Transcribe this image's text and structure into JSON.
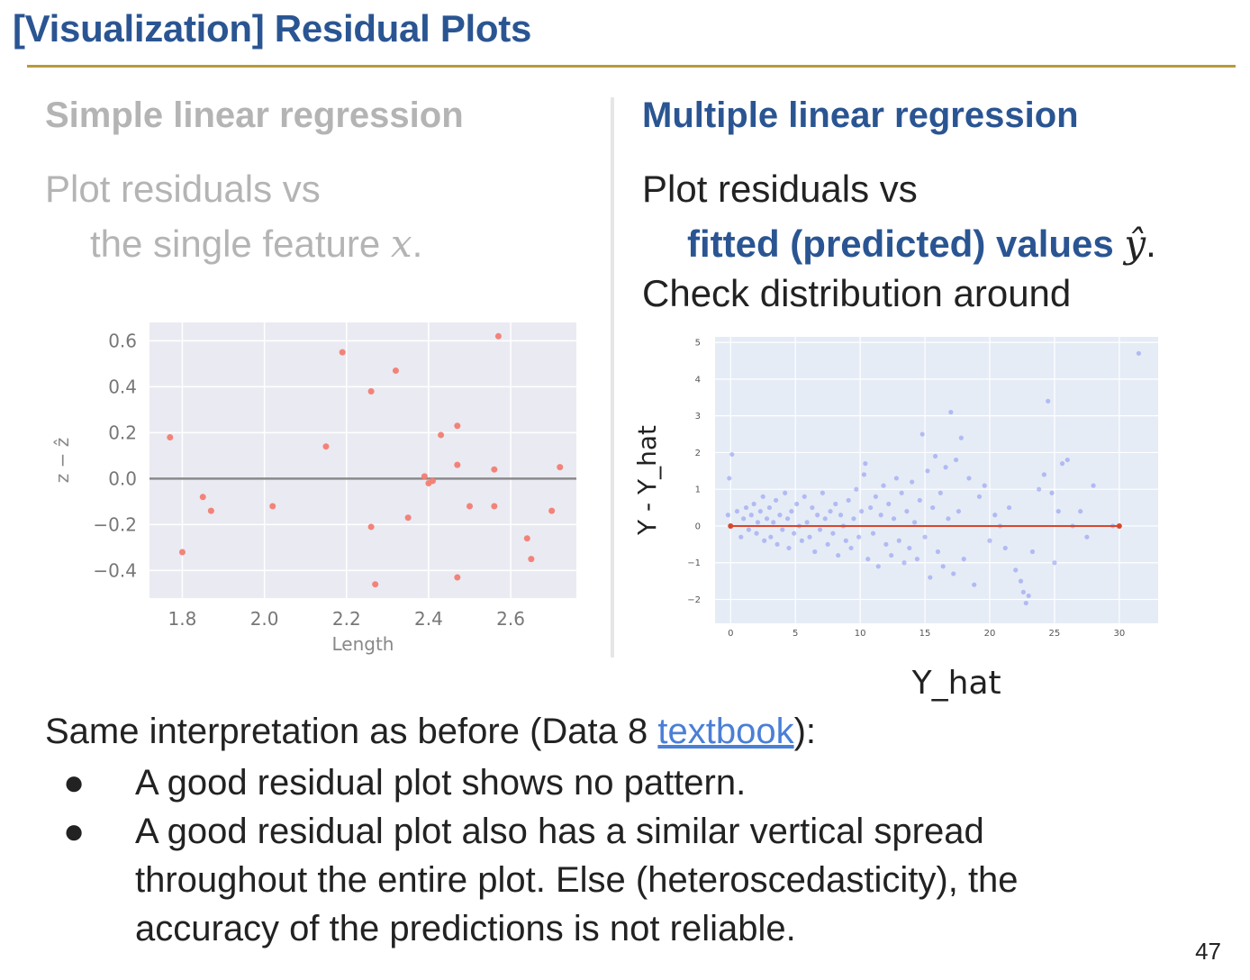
{
  "slide": {
    "title": "[Visualization] Residual Plots",
    "page_number": "47"
  },
  "left": {
    "heading": "Simple linear regression",
    "line1": "Plot residuals vs",
    "line2": "the single feature ",
    "line2_math": "x",
    "line2_end": "."
  },
  "right": {
    "heading": "Multiple linear regression",
    "line1": "Plot residuals vs",
    "line2": "fitted (predicted) values ",
    "line2_math": "ŷ",
    "line2_end": ".",
    "line3": "Check distribution around"
  },
  "bottom": {
    "intro_pre": "Same interpretation as before  (Data 8 ",
    "intro_link": "textbook",
    "intro_post": "):",
    "bullets": [
      "A good residual plot shows no pattern.",
      "A good residual plot also has a similar vertical spread throughout the entire plot. Else (heteroscedasticity), the accuracy of the predictions is not reliable."
    ],
    "bullet_glyph": "●"
  },
  "chart_data": [
    {
      "type": "scatter",
      "title": "",
      "xlabel": "Length",
      "ylabel": "z − ẑ",
      "xlim": [
        1.72,
        2.76
      ],
      "ylim": [
        -0.52,
        0.68
      ],
      "xticks": [
        "1.8",
        "2.0",
        "2.2",
        "2.4",
        "2.6"
      ],
      "xtick_values": [
        1.8,
        2.0,
        2.2,
        2.4,
        2.6
      ],
      "yticks": [
        "0.6",
        "0.4",
        "0.2",
        "0.0",
        "−0.2",
        "−0.4"
      ],
      "ytick_values": [
        0.6,
        0.4,
        0.2,
        0.0,
        -0.2,
        -0.4
      ],
      "hline": 0.0,
      "grid": true,
      "point_color": "#f27d72",
      "points": [
        [
          1.77,
          0.18
        ],
        [
          1.8,
          -0.32
        ],
        [
          1.85,
          -0.08
        ],
        [
          1.87,
          -0.14
        ],
        [
          2.02,
          -0.12
        ],
        [
          2.15,
          0.14
        ],
        [
          2.19,
          0.55
        ],
        [
          2.26,
          0.38
        ],
        [
          2.26,
          -0.21
        ],
        [
          2.27,
          -0.46
        ],
        [
          2.32,
          0.47
        ],
        [
          2.35,
          -0.17
        ],
        [
          2.39,
          0.01
        ],
        [
          2.4,
          -0.02
        ],
        [
          2.41,
          -0.01
        ],
        [
          2.43,
          0.19
        ],
        [
          2.47,
          0.23
        ],
        [
          2.47,
          0.06
        ],
        [
          2.47,
          -0.43
        ],
        [
          2.5,
          -0.12
        ],
        [
          2.56,
          0.04
        ],
        [
          2.56,
          -0.12
        ],
        [
          2.57,
          0.62
        ],
        [
          2.64,
          -0.26
        ],
        [
          2.65,
          -0.35
        ],
        [
          2.7,
          -0.14
        ],
        [
          2.72,
          0.05
        ]
      ]
    },
    {
      "type": "scatter",
      "title": "",
      "xlabel": "Y_hat",
      "ylabel": "Y - Y_hat",
      "xlim": [
        -1.2,
        33.0
      ],
      "ylim": [
        -2.65,
        5.15
      ],
      "xticks": [
        "0",
        "5",
        "10",
        "15",
        "20",
        "25",
        "30"
      ],
      "xtick_values": [
        0,
        5,
        10,
        15,
        20,
        25,
        30
      ],
      "yticks": [
        "5",
        "4",
        "3",
        "2",
        "1",
        "0",
        "−1",
        "−2"
      ],
      "ytick_values": [
        5,
        4,
        3,
        2,
        1,
        0,
        -1,
        -2
      ],
      "grid": true,
      "point_color": "#6470f0",
      "line": {
        "color": "#d9472b",
        "x": [
          0,
          30
        ],
        "y": [
          0,
          0
        ]
      },
      "points_summary": "dense cloud of several hundred points, most between Y_hat 0-15 with residuals mostly within ±1; sparser points spread up to Y_hat ≈ 31.5",
      "points": [
        [
          -0.2,
          0.3
        ],
        [
          -0.1,
          1.3
        ],
        [
          0.1,
          1.95
        ],
        [
          0.5,
          0.4
        ],
        [
          0.8,
          -0.3
        ],
        [
          1.0,
          0.2
        ],
        [
          1.2,
          0.5
        ],
        [
          1.4,
          -0.1
        ],
        [
          1.6,
          0.3
        ],
        [
          1.8,
          0.6
        ],
        [
          2.0,
          -0.2
        ],
        [
          2.1,
          0.1
        ],
        [
          2.3,
          0.4
        ],
        [
          2.5,
          0.8
        ],
        [
          2.6,
          -0.4
        ],
        [
          2.8,
          0.2
        ],
        [
          3.0,
          0.5
        ],
        [
          3.1,
          -0.3
        ],
        [
          3.3,
          0.1
        ],
        [
          3.5,
          0.7
        ],
        [
          3.6,
          -0.5
        ],
        [
          3.8,
          0.3
        ],
        [
          4.0,
          -0.1
        ],
        [
          4.2,
          0.9
        ],
        [
          4.4,
          0.2
        ],
        [
          4.5,
          -0.6
        ],
        [
          4.7,
          0.4
        ],
        [
          4.9,
          -0.2
        ],
        [
          5.1,
          0.6
        ],
        [
          5.3,
          0.0
        ],
        [
          5.5,
          -0.4
        ],
        [
          5.7,
          0.8
        ],
        [
          5.9,
          0.1
        ],
        [
          6.1,
          -0.3
        ],
        [
          6.3,
          0.5
        ],
        [
          6.5,
          -0.7
        ],
        [
          6.7,
          0.3
        ],
        [
          6.9,
          -0.1
        ],
        [
          7.1,
          0.9
        ],
        [
          7.3,
          0.2
        ],
        [
          7.5,
          -0.5
        ],
        [
          7.7,
          0.4
        ],
        [
          7.9,
          -0.2
        ],
        [
          8.1,
          0.6
        ],
        [
          8.3,
          -0.8
        ],
        [
          8.5,
          0.3
        ],
        [
          8.7,
          0.0
        ],
        [
          8.9,
          -0.4
        ],
        [
          9.1,
          0.7
        ],
        [
          9.3,
          -0.6
        ],
        [
          9.5,
          0.2
        ],
        [
          9.7,
          1.0
        ],
        [
          9.9,
          -0.3
        ],
        [
          10.1,
          0.4
        ],
        [
          10.3,
          1.4
        ],
        [
          10.4,
          1.7
        ],
        [
          10.6,
          -0.9
        ],
        [
          10.8,
          0.5
        ],
        [
          11.0,
          -0.2
        ],
        [
          11.2,
          0.8
        ],
        [
          11.4,
          -1.1
        ],
        [
          11.6,
          0.3
        ],
        [
          11.8,
          1.1
        ],
        [
          12.0,
          -0.5
        ],
        [
          12.2,
          0.6
        ],
        [
          12.4,
          -0.8
        ],
        [
          12.6,
          0.2
        ],
        [
          12.8,
          1.3
        ],
        [
          13.0,
          -0.4
        ],
        [
          13.2,
          0.9
        ],
        [
          13.4,
          -1.0
        ],
        [
          13.6,
          0.4
        ],
        [
          13.8,
          -0.6
        ],
        [
          14.0,
          1.2
        ],
        [
          14.2,
          0.1
        ],
        [
          14.4,
          -0.9
        ],
        [
          14.6,
          0.7
        ],
        [
          14.8,
          2.5
        ],
        [
          15.0,
          -0.3
        ],
        [
          15.2,
          1.5
        ],
        [
          15.4,
          -1.4
        ],
        [
          15.6,
          0.5
        ],
        [
          15.8,
          1.9
        ],
        [
          16.0,
          -0.7
        ],
        [
          16.2,
          0.9
        ],
        [
          16.4,
          -1.1
        ],
        [
          16.6,
          1.6
        ],
        [
          16.8,
          0.2
        ],
        [
          17.0,
          3.1
        ],
        [
          17.2,
          -1.3
        ],
        [
          17.4,
          1.8
        ],
        [
          17.6,
          0.4
        ],
        [
          17.8,
          2.4
        ],
        [
          18.0,
          -0.9
        ],
        [
          18.4,
          1.3
        ],
        [
          18.8,
          -1.6
        ],
        [
          19.2,
          0.8
        ],
        [
          19.6,
          1.1
        ],
        [
          20.0,
          -0.4
        ],
        [
          20.4,
          0.3
        ],
        [
          20.8,
          0.0
        ],
        [
          21.2,
          -0.6
        ],
        [
          21.5,
          0.5
        ],
        [
          22.0,
          -1.2
        ],
        [
          22.4,
          -1.5
        ],
        [
          22.6,
          -1.8
        ],
        [
          22.8,
          -2.1
        ],
        [
          23.0,
          -1.9
        ],
        [
          23.3,
          -0.7
        ],
        [
          23.8,
          1.0
        ],
        [
          24.2,
          1.4
        ],
        [
          24.5,
          3.4
        ],
        [
          24.8,
          0.9
        ],
        [
          25.0,
          -1.0
        ],
        [
          25.3,
          0.4
        ],
        [
          25.6,
          1.7
        ],
        [
          26.0,
          1.8
        ],
        [
          26.4,
          0.0
        ],
        [
          27.0,
          0.4
        ],
        [
          27.5,
          -0.3
        ],
        [
          28.0,
          1.1
        ],
        [
          29.5,
          0.0
        ],
        [
          31.5,
          4.7
        ]
      ]
    }
  ]
}
